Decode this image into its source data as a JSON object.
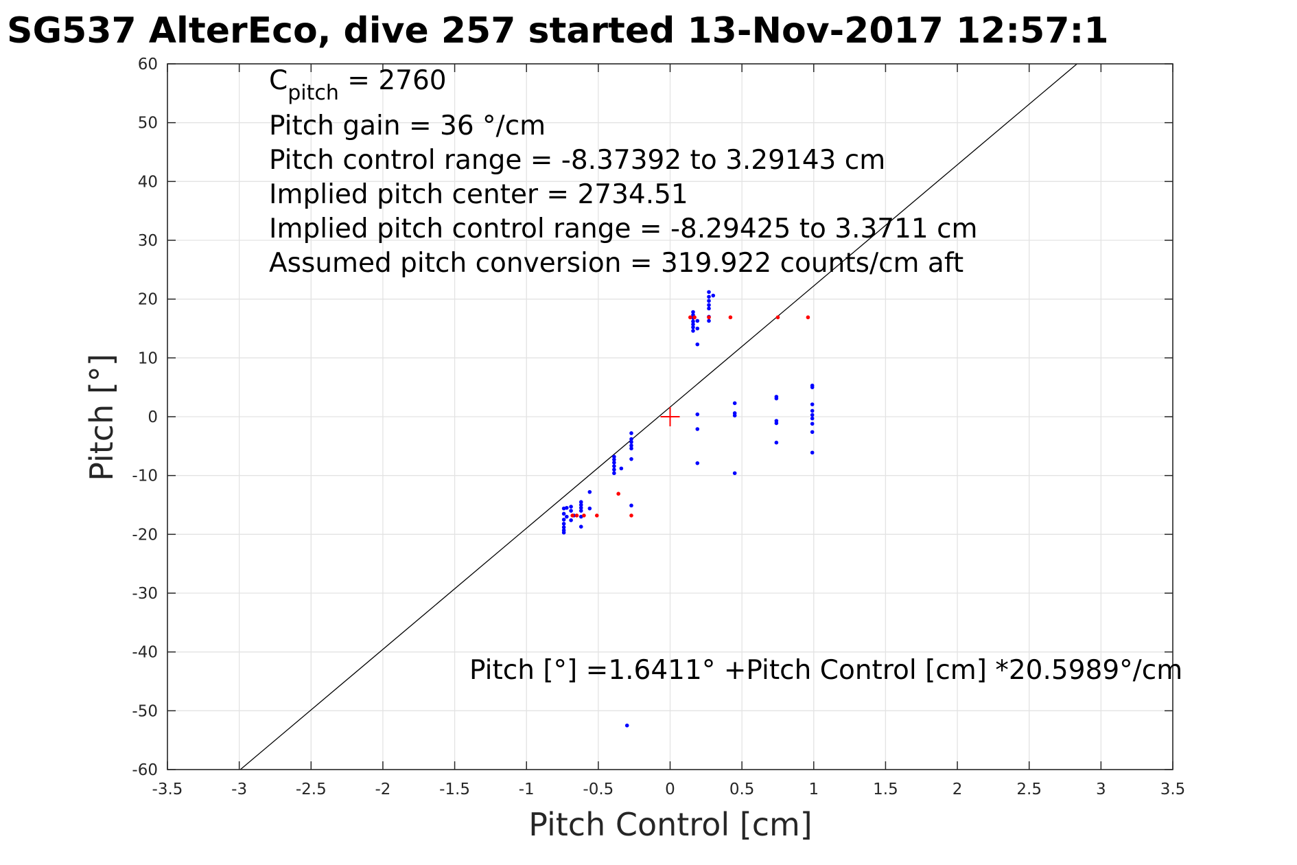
{
  "chart_data": {
    "type": "scatter",
    "title": "SG537 AlterEco, dive 257 started 13-Nov-2017 12:57:1",
    "xlabel": "Pitch Control [cm]",
    "ylabel": "Pitch [°]",
    "xlim": [
      -3.5,
      3.5
    ],
    "ylim": [
      -60,
      60
    ],
    "xticks": [
      -3.5,
      -3,
      -2.5,
      -2,
      -1.5,
      -1,
      -0.5,
      0,
      0.5,
      1,
      1.5,
      2,
      2.5,
      3,
      3.5
    ],
    "xtick_labels": [
      "-3.5",
      "-3",
      "-2.5",
      "-2",
      "-1.5",
      "-1",
      "-0.5",
      "0",
      "0.5",
      "1",
      "1.5",
      "2",
      "2.5",
      "3",
      "3.5"
    ],
    "yticks": [
      -60,
      -50,
      -40,
      -30,
      -20,
      -10,
      0,
      10,
      20,
      30,
      40,
      50,
      60
    ],
    "ytick_labels": [
      "-60",
      "-50",
      "-40",
      "-30",
      "-20",
      "-10",
      "0",
      "10",
      "20",
      "30",
      "40",
      "50",
      "60"
    ],
    "grid": true,
    "fit_line": {
      "intercept": 1.6411,
      "slope": 20.5989
    },
    "center_marker": {
      "x": 0,
      "y": 0,
      "color": "#ff0000"
    },
    "annotations": {
      "c_pitch_label": "C",
      "c_pitch_sub": "pitch",
      "c_pitch_value": " = 2760",
      "line2": "Pitch gain = 36 °/cm",
      "line3": "Pitch control range = -8.37392 to 3.29143 cm",
      "line4": "Implied pitch center = 2734.51",
      "line5": "Implied pitch control range = -8.29425 to 3.3711 cm",
      "line6": "Assumed pitch conversion = 319.922 counts/cm aft",
      "fit_text": "Pitch [°] =1.6411° +Pitch Control [cm] *20.5989°/cm"
    },
    "series": [
      {
        "color": "#0000ff",
        "points": [
          [
            -0.74,
            -15.6
          ],
          [
            -0.74,
            -16.5
          ],
          [
            -0.74,
            -17.5
          ],
          [
            -0.74,
            -18.2
          ],
          [
            -0.74,
            -18.8
          ],
          [
            -0.74,
            -19.3
          ],
          [
            -0.74,
            -19.7
          ],
          [
            -0.72,
            -15.5
          ],
          [
            -0.72,
            -17.0
          ],
          [
            -0.69,
            -15.3
          ],
          [
            -0.69,
            -16.0
          ],
          [
            -0.69,
            -17.6
          ],
          [
            -0.67,
            -16.8
          ],
          [
            -0.62,
            -14.5
          ],
          [
            -0.62,
            -15.0
          ],
          [
            -0.62,
            -15.5
          ],
          [
            -0.62,
            -16.0
          ],
          [
            -0.62,
            -17.0
          ],
          [
            -0.62,
            -18.7
          ],
          [
            -0.56,
            -12.8
          ],
          [
            -0.56,
            -15.6
          ],
          [
            -0.39,
            -6.8
          ],
          [
            -0.39,
            -7.3
          ],
          [
            -0.39,
            -7.8
          ],
          [
            -0.39,
            -8.4
          ],
          [
            -0.39,
            -9.0
          ],
          [
            -0.39,
            -9.6
          ],
          [
            -0.34,
            -8.8
          ],
          [
            -0.27,
            -2.8
          ],
          [
            -0.27,
            -3.8
          ],
          [
            -0.27,
            -4.3
          ],
          [
            -0.27,
            -4.9
          ],
          [
            -0.27,
            -5.4
          ],
          [
            -0.27,
            -7.2
          ],
          [
            -0.27,
            -15.1
          ],
          [
            0.16,
            14.6
          ],
          [
            0.16,
            15.2
          ],
          [
            0.16,
            15.7
          ],
          [
            0.16,
            16.2
          ],
          [
            0.16,
            16.8
          ],
          [
            0.16,
            17.3
          ],
          [
            0.16,
            17.8
          ],
          [
            0.19,
            12.3
          ],
          [
            0.19,
            16.3
          ],
          [
            0.19,
            15.0
          ],
          [
            0.27,
            16.3
          ],
          [
            0.27,
            17.0
          ],
          [
            0.27,
            18.4
          ],
          [
            0.27,
            19.0
          ],
          [
            0.27,
            19.7
          ],
          [
            0.27,
            20.4
          ],
          [
            0.27,
            21.2
          ],
          [
            0.3,
            20.6
          ],
          [
            0.19,
            0.4
          ],
          [
            0.19,
            -2.1
          ],
          [
            0.19,
            -7.9
          ],
          [
            0.45,
            2.3
          ],
          [
            0.45,
            0.6
          ],
          [
            0.45,
            0.2
          ],
          [
            0.45,
            -9.6
          ],
          [
            0.74,
            3.4
          ],
          [
            0.74,
            3.1
          ],
          [
            0.74,
            -0.7
          ],
          [
            0.74,
            -1.1
          ],
          [
            0.74,
            -4.4
          ],
          [
            0.99,
            5.3
          ],
          [
            0.99,
            5.0
          ],
          [
            0.99,
            2.1
          ],
          [
            0.99,
            1.0
          ],
          [
            0.99,
            0.3
          ],
          [
            0.99,
            -0.3
          ],
          [
            0.99,
            -1.2
          ],
          [
            0.99,
            -2.6
          ],
          [
            0.99,
            -6.1
          ],
          [
            -0.3,
            -52.5
          ]
        ]
      },
      {
        "color": "#ff0000",
        "points": [
          [
            -0.68,
            -16.8
          ],
          [
            -0.65,
            -16.8
          ],
          [
            -0.6,
            -16.8
          ],
          [
            -0.51,
            -16.8
          ],
          [
            -0.27,
            -16.8
          ],
          [
            -0.36,
            -13.1
          ],
          [
            0.14,
            16.9
          ],
          [
            0.17,
            16.9
          ],
          [
            0.27,
            16.9
          ],
          [
            0.42,
            16.9
          ],
          [
            0.75,
            16.9
          ],
          [
            0.96,
            16.9
          ]
        ]
      }
    ]
  }
}
